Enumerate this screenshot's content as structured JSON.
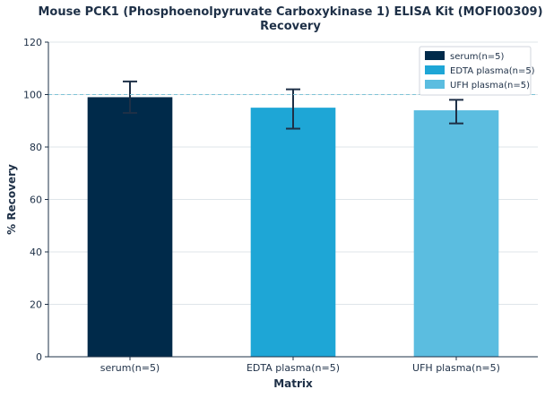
{
  "chart_data": {
    "type": "bar",
    "title_line1": "Mouse PCK1 (Phosphoenolpyruvate Carboxykinase 1) ELISA Kit (MOFI00309)",
    "title_line2": "Recovery",
    "xlabel": "Matrix",
    "ylabel": "% Recovery",
    "ylim": [
      0,
      120
    ],
    "yticks": [
      0,
      20,
      40,
      60,
      80,
      100,
      120
    ],
    "categories": [
      "serum(n=5)",
      "EDTA plasma(n=5)",
      "UFH plasma(n=5)"
    ],
    "values": [
      99,
      95,
      94
    ],
    "error_low": [
      93,
      87,
      89
    ],
    "error_high": [
      105,
      102,
      98
    ],
    "colors": [
      "#002a4a",
      "#1ea6d6",
      "#5bbde0"
    ],
    "reference_line": 100,
    "reference_line_color": "#7fc3d6",
    "grid": true,
    "legend_placement": "top-right",
    "legend": [
      "serum(n=5)",
      "EDTA plasma(n=5)",
      "UFH plasma(n=5)"
    ]
  }
}
